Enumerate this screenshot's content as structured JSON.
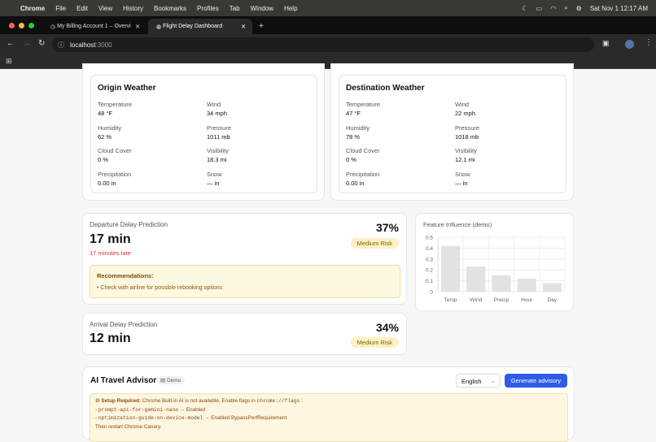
{
  "menubar": {
    "app": "Chrome",
    "items": [
      "File",
      "Edit",
      "View",
      "History",
      "Bookmarks",
      "Profiles",
      "Tab",
      "Window",
      "Help"
    ],
    "datetime": "Sat Nov 1  12:17 AM"
  },
  "tabs": [
    {
      "title": "My Billing Account 1 – Overvi"
    },
    {
      "title": "Flight Delay Dashboard"
    }
  ],
  "url": {
    "host": "localhost",
    "port": ":3000"
  },
  "origin": {
    "title": "Origin Weather",
    "fields": [
      {
        "label": "Temperature",
        "value": "48 °F"
      },
      {
        "label": "Wind",
        "value": "34 mph"
      },
      {
        "label": "Humidity",
        "value": "62 %"
      },
      {
        "label": "Pressure",
        "value": "1011 mb"
      },
      {
        "label": "Cloud Cover",
        "value": "0 %"
      },
      {
        "label": "Visibility",
        "value": "18.3 mi"
      },
      {
        "label": "Precipitation",
        "value": "0.00 in"
      },
      {
        "label": "Snow",
        "value": "— in"
      }
    ]
  },
  "destination": {
    "title": "Destination Weather",
    "fields": [
      {
        "label": "Temperature",
        "value": "47 °F"
      },
      {
        "label": "Wind",
        "value": "22 mph"
      },
      {
        "label": "Humidity",
        "value": "78 %"
      },
      {
        "label": "Pressure",
        "value": "1018 mb"
      },
      {
        "label": "Cloud Cover",
        "value": "0 %"
      },
      {
        "label": "Visibility",
        "value": "12.1 mi"
      },
      {
        "label": "Precipitation",
        "value": "0.00 in"
      },
      {
        "label": "Snow",
        "value": "— in"
      }
    ]
  },
  "departure": {
    "title": "Departure Delay Prediction",
    "delay": "17 min",
    "late": "17 minutes late",
    "probability": "37%",
    "risk": "Medium Risk",
    "rec_title": "Recommendations:",
    "rec_items": [
      "• Check with airline for possible rebooking options"
    ]
  },
  "arrival": {
    "title": "Arrival Delay Prediction",
    "delay": "12 min",
    "probability": "34%",
    "risk": "Medium Risk"
  },
  "chart_data": {
    "type": "bar",
    "title": "Feature Influence (demo)",
    "categories": [
      "Temp",
      "Wind",
      "Precip",
      "Hour",
      "Day"
    ],
    "values": [
      0.42,
      0.23,
      0.15,
      0.12,
      0.08
    ],
    "ylim": [
      0,
      0.5
    ],
    "yticks": [
      "0",
      "0.1",
      "0.2",
      "0.3",
      "0.4",
      "0.5"
    ],
    "grid": true,
    "bar_color": "#e2e2e2"
  },
  "advisor": {
    "title": "AI Travel Advisor",
    "badge": "Demo",
    "language": "English",
    "generate": "Generate advisory",
    "setup_label": "Setup Required:",
    "setup_text": " Chrome Built-in AI is not available. Enable flags in ",
    "flags_url": "chrome://flags",
    "flag1": "prompt-api-for-gemini-nano",
    "flag1_val": " → Enabled",
    "flag2": "optimization-guide-on-device-model",
    "flag2_val": " → Enabled BypassPerfRequirement",
    "restart": "Then restart Chrome Canary."
  },
  "colors": {
    "accent": "#2f5ce6",
    "late": "#d33",
    "warn_bg": "#fdf6e0"
  }
}
